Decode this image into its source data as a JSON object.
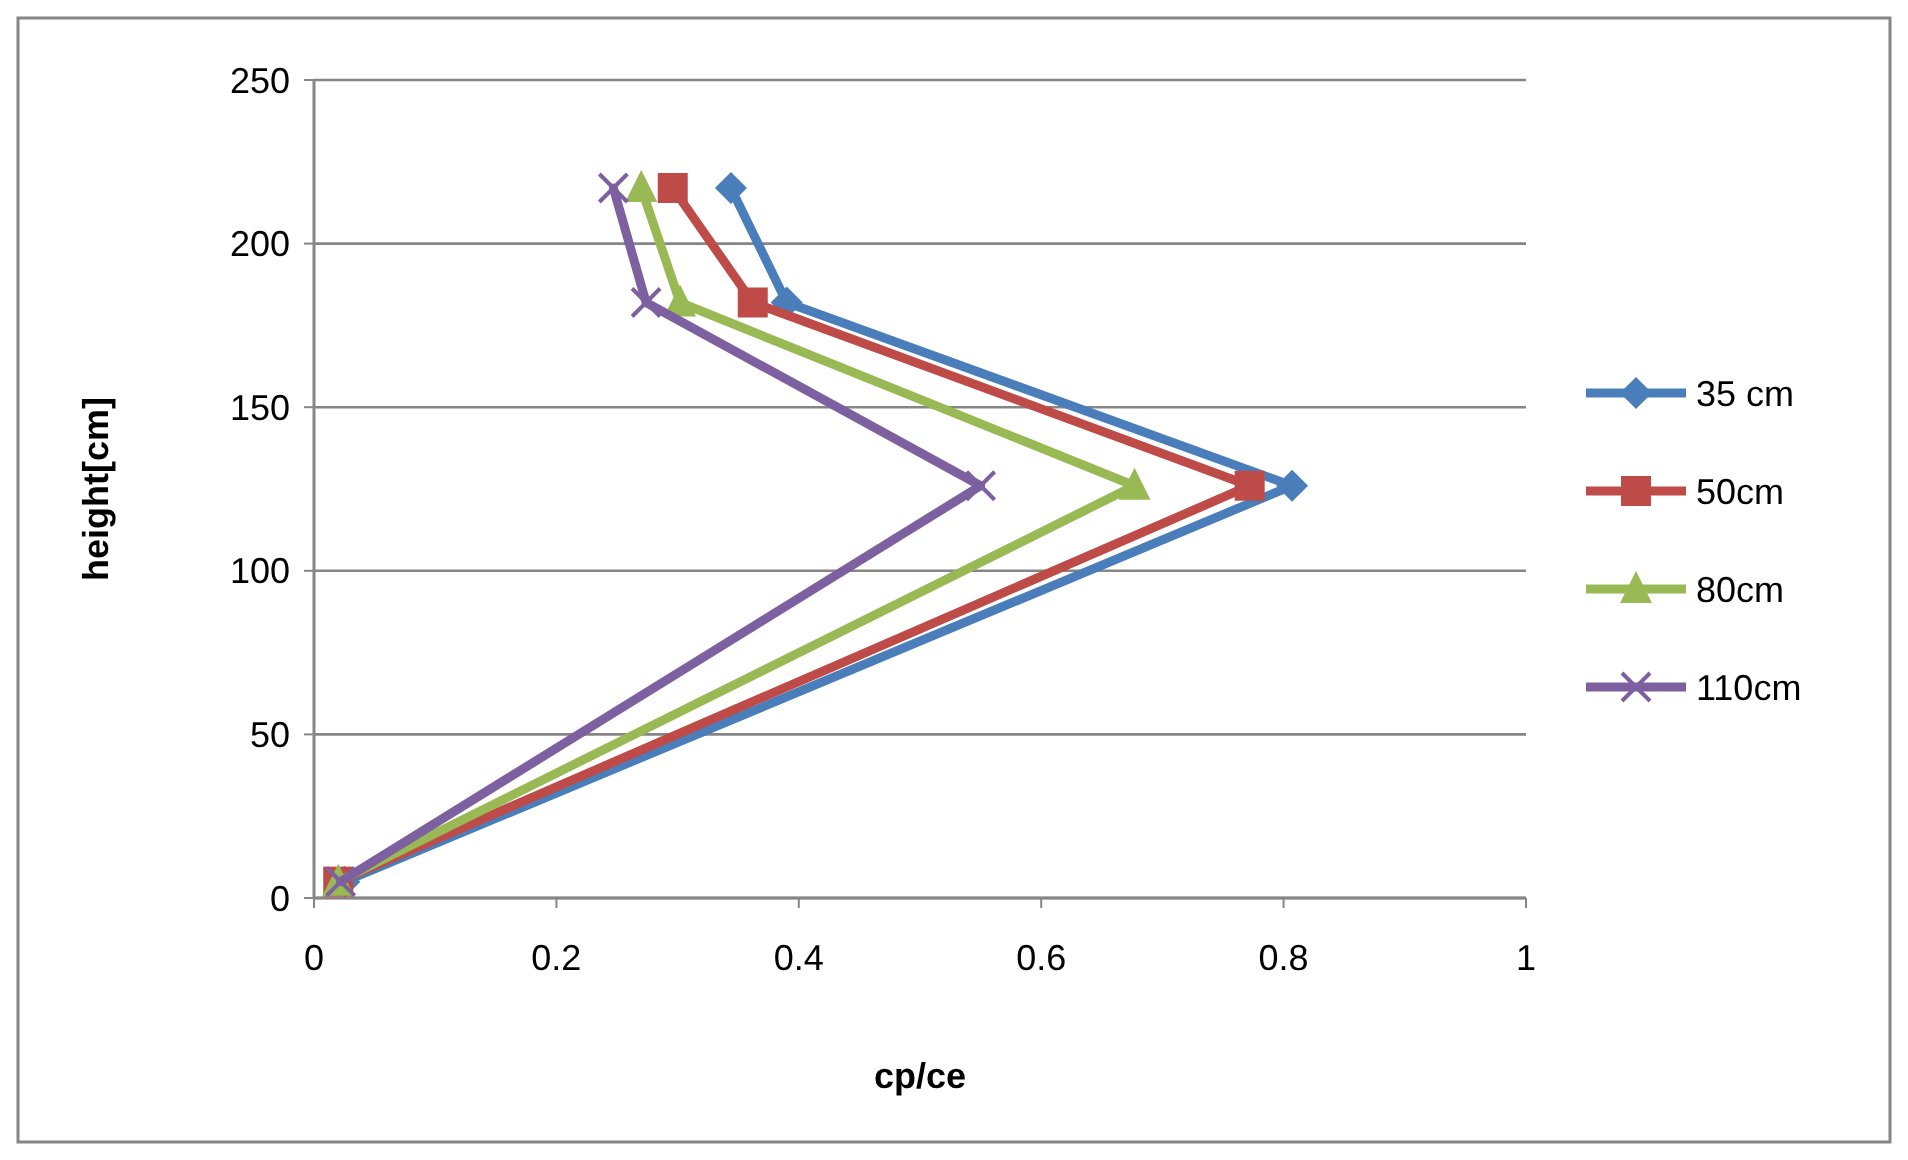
{
  "chart_data": {
    "type": "line",
    "xlabel": "cp/ce",
    "ylabel": "height[cm]",
    "xlim": [
      0,
      1
    ],
    "xticks": [
      0,
      0.2,
      0.4,
      0.6,
      0.8,
      1
    ],
    "ylim": [
      0,
      250
    ],
    "yticks": [
      0,
      50,
      100,
      150,
      200,
      250
    ],
    "grid": "y",
    "legend": "right",
    "line_style": "solid",
    "series": [
      {
        "name": "35 cm",
        "color": "#4a7ebb",
        "marker": "diamond",
        "x": [
          0.025,
          0.807,
          0.39,
          0.344
        ],
        "values": [
          5,
          126,
          182,
          217
        ]
      },
      {
        "name": "50cm",
        "color": "#be4b48",
        "marker": "square",
        "x": [
          0.02,
          0.772,
          0.362,
          0.296
        ],
        "values": [
          5,
          126,
          182,
          217
        ]
      },
      {
        "name": "80cm",
        "color": "#98b954",
        "marker": "triangle",
        "x": [
          0.02,
          0.677,
          0.302,
          0.27
        ],
        "values": [
          5,
          126,
          182,
          217
        ]
      },
      {
        "name": "110cm",
        "color": "#7d60a0",
        "marker": "cross",
        "x": [
          0.022,
          0.55,
          0.274,
          0.247
        ],
        "values": [
          5,
          126,
          182,
          217
        ]
      }
    ]
  }
}
